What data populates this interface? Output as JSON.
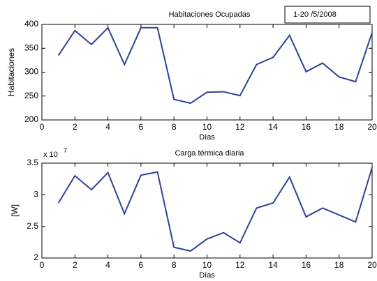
{
  "chart_data": [
    {
      "type": "line",
      "title": "Habitaciones Ocupadas",
      "annotation": "1-20  /5/2008",
      "xlabel": "Días",
      "ylabel": "Habitaciones",
      "x": [
        1,
        2,
        3,
        4,
        5,
        6,
        7,
        8,
        9,
        10,
        11,
        12,
        13,
        14,
        15,
        16,
        17,
        18,
        19,
        20
      ],
      "series": [
        {
          "color": "#33409a",
          "values": [
            335,
            387,
            358,
            393,
            316,
            393,
            393,
            243,
            235,
            258,
            259,
            251,
            316,
            331,
            377,
            301,
            319,
            290,
            280,
            383
          ]
        }
      ],
      "xlim": [
        0,
        20
      ],
      "xticks": [
        0,
        2,
        4,
        6,
        8,
        10,
        12,
        14,
        16,
        18,
        20
      ],
      "ylim": [
        200,
        400
      ],
      "yticks": [
        200,
        250,
        300,
        350,
        400
      ]
    },
    {
      "type": "line",
      "title": "Carga térmica diaria",
      "multiplier": "x 10",
      "multiplier_exponent": "7",
      "xlabel": "Días",
      "ylabel": "[W]",
      "x": [
        1,
        2,
        3,
        4,
        5,
        6,
        7,
        8,
        9,
        10,
        11,
        12,
        13,
        14,
        15,
        16,
        17,
        18,
        19,
        20
      ],
      "series": [
        {
          "color": "#33409a",
          "values": [
            2.87,
            3.3,
            3.08,
            3.35,
            2.7,
            3.31,
            3.36,
            2.17,
            2.11,
            2.3,
            2.4,
            2.24,
            2.79,
            2.87,
            3.28,
            2.65,
            2.79,
            2.68,
            2.57,
            3.43
          ]
        }
      ],
      "xlim": [
        0,
        20
      ],
      "xticks": [
        0,
        2,
        4,
        6,
        8,
        10,
        12,
        14,
        16,
        18,
        20
      ],
      "ylim": [
        2,
        3.5
      ],
      "yticks": [
        2,
        2.5,
        3,
        3.5
      ]
    }
  ]
}
